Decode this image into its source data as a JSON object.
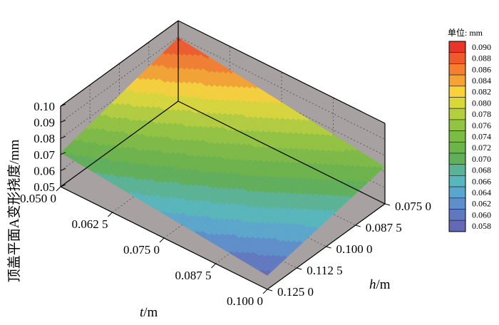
{
  "chart_data": {
    "type": "surface3d",
    "title": "",
    "zlabel": "顶盖平面A变形挠度/mm",
    "xlabel": "t/m",
    "ylabel": "h/m",
    "xlabel_var": "t",
    "xlabel_unit": "/m",
    "ylabel_var": "h",
    "ylabel_unit": "/m",
    "zlim": [
      0.05,
      0.1
    ],
    "z_ticks": [
      "0.10",
      "0.09",
      "0.08",
      "0.07",
      "0.06",
      "0.05"
    ],
    "x_ticks": [
      "0.050 0",
      "0.062 5",
      "0.075 0",
      "0.087 5",
      "0.100 0"
    ],
    "y_ticks": [
      "0.075 0",
      "0.087 5",
      "0.100 0",
      "0.112 5",
      "0.125 0"
    ],
    "x": [
      0.05,
      0.0625,
      0.075,
      0.0875,
      0.1
    ],
    "y": [
      0.075,
      0.0875,
      0.1,
      0.1125,
      0.125
    ],
    "corners": [
      {
        "t": 0.05,
        "h": 0.075,
        "z": 0.0895
      },
      {
        "t": 0.05,
        "h": 0.125,
        "z": 0.071
      },
      {
        "t": 0.1,
        "h": 0.075,
        "z": 0.073
      },
      {
        "t": 0.1,
        "h": 0.125,
        "z": 0.0585
      }
    ],
    "grid": true,
    "legend": {
      "title": "单位: mm",
      "placement": "right",
      "levels": [
        "0.090",
        "0.088",
        "0.086",
        "0.084",
        "0.082",
        "0.080",
        "0.078",
        "0.076",
        "0.074",
        "0.072",
        "0.070",
        "0.068",
        "0.066",
        "0.064",
        "0.062",
        "0.060",
        "0.058"
      ],
      "colors": [
        "#e8352a",
        "#f05a2a",
        "#f57e2f",
        "#f7a332",
        "#f9d23a",
        "#d9d83a",
        "#b3cf3d",
        "#92c53f",
        "#7dbc44",
        "#6bb54a",
        "#5eb05a",
        "#58b495",
        "#55b8bd",
        "#59a6cf",
        "#5c8fcc",
        "#5f78c2",
        "#6369b6"
      ]
    },
    "colors": {
      "wall": "#a7a1a1",
      "grid": "#5a5a5a",
      "edge": "#000000"
    }
  }
}
